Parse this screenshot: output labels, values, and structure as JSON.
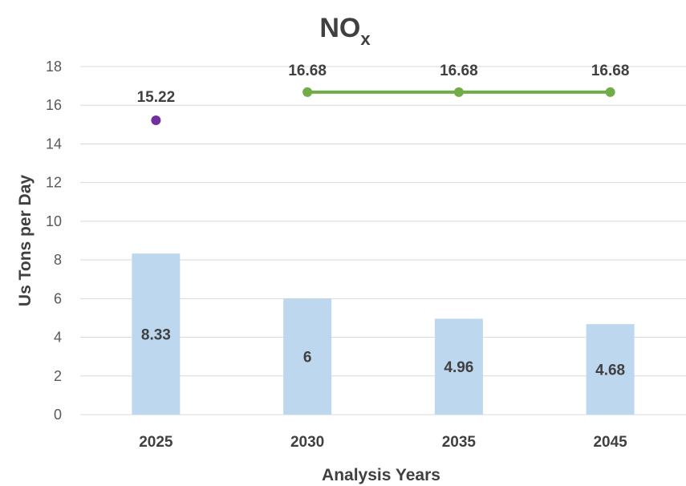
{
  "chart_data": {
    "type": "bar",
    "title": "NO",
    "title_subscript": "x",
    "xlabel": "Analysis Years",
    "ylabel": "Us Tons per Day",
    "ylim": [
      0,
      18
    ],
    "y_ticks": [
      0,
      2,
      4,
      6,
      8,
      10,
      12,
      14,
      16,
      18
    ],
    "categories": [
      "2025",
      "2030",
      "2035",
      "2045"
    ],
    "grid": true,
    "legend": "none",
    "series": [
      {
        "type": "bar",
        "values": [
          8.33,
          6,
          4.96,
          4.68
        ],
        "labels": [
          "8.33",
          "6",
          "4.96",
          "4.68"
        ],
        "color": "#bdd7ee"
      },
      {
        "type": "scatter",
        "points": [
          {
            "category": "2025",
            "value": 15.22
          }
        ],
        "labels": [
          "15.22"
        ],
        "color": "#7030a0"
      },
      {
        "type": "line",
        "points": [
          {
            "category": "2030",
            "value": 16.68
          },
          {
            "category": "2035",
            "value": 16.68
          },
          {
            "category": "2045",
            "value": 16.68
          }
        ],
        "labels": [
          "16.68",
          "16.68",
          "16.68"
        ],
        "color": "#70ad47"
      }
    ]
  }
}
